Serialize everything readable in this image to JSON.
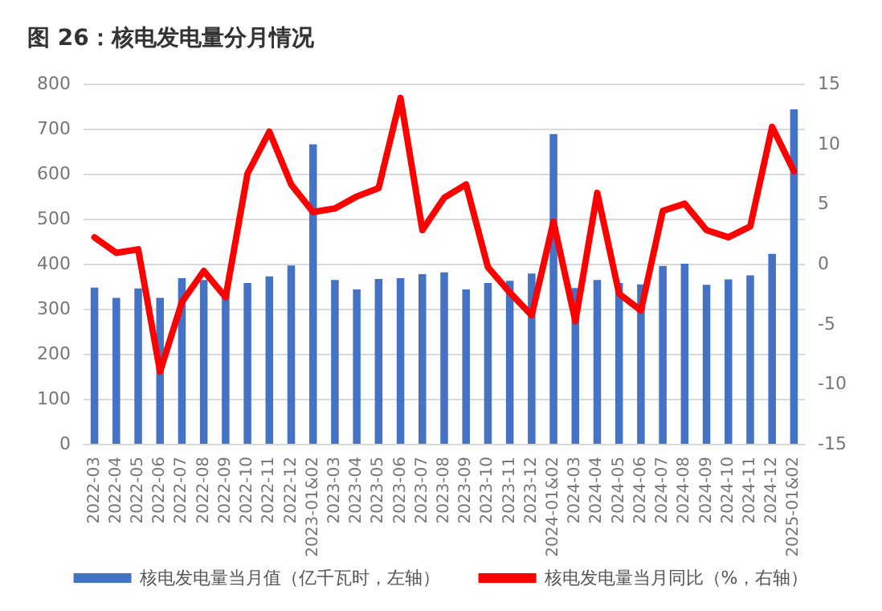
{
  "chart_data": {
    "type": "bar",
    "title": "图 26：核电发电量分月情况",
    "categories": [
      "2022-03",
      "2022-04",
      "2022-05",
      "2022-06",
      "2022-07",
      "2022-08",
      "2022-09",
      "2022-10",
      "2022-11",
      "2022-12",
      "2023-01&02",
      "2023-03",
      "2023-04",
      "2023-05",
      "2023-06",
      "2023-07",
      "2023-08",
      "2023-09",
      "2023-10",
      "2023-11",
      "2023-12",
      "2024-01&02",
      "2024-03",
      "2024-04",
      "2024-05",
      "2024-06",
      "2024-07",
      "2024-08",
      "2024-09",
      "2024-10",
      "2024-11",
      "2024-12",
      "2025-01&02"
    ],
    "series": [
      {
        "name": "核电发电量当月值（亿千瓦时，左轴）",
        "color": "#4472c4",
        "values": [
          347,
          324,
          345,
          324,
          368,
          364,
          340,
          357,
          372,
          396,
          665,
          364,
          343,
          366,
          368,
          377,
          381,
          343,
          357,
          362,
          378,
          688,
          346,
          364,
          357,
          354,
          395,
          400,
          353,
          365,
          374,
          422,
          743
        ]
      },
      {
        "name": "核电发电量当月同比（%，右轴）",
        "type": "line",
        "axis": "y2",
        "color": "#ff0000",
        "values": [
          2.2,
          0.9,
          1.2,
          -9.0,
          -3.2,
          -0.6,
          -2.8,
          7.5,
          11.0,
          6.6,
          4.3,
          4.6,
          5.6,
          6.3,
          13.8,
          2.8,
          5.5,
          6.6,
          -0.3,
          -2.4,
          -4.3,
          3.5,
          -4.8,
          5.9,
          -2.5,
          -3.9,
          4.4,
          5.0,
          2.8,
          2.2,
          3.1,
          11.4,
          7.7
        ]
      }
    ],
    "ylim": [
      0,
      800
    ],
    "yticks": [
      0,
      100,
      200,
      300,
      400,
      500,
      600,
      700,
      800
    ],
    "y2lim": [
      -15,
      15
    ],
    "y2ticks": [
      -15,
      -10,
      -5,
      0,
      5,
      10,
      15
    ],
    "grid": "y",
    "legend": "bottom",
    "marker": "none",
    "line_style": "solid"
  }
}
